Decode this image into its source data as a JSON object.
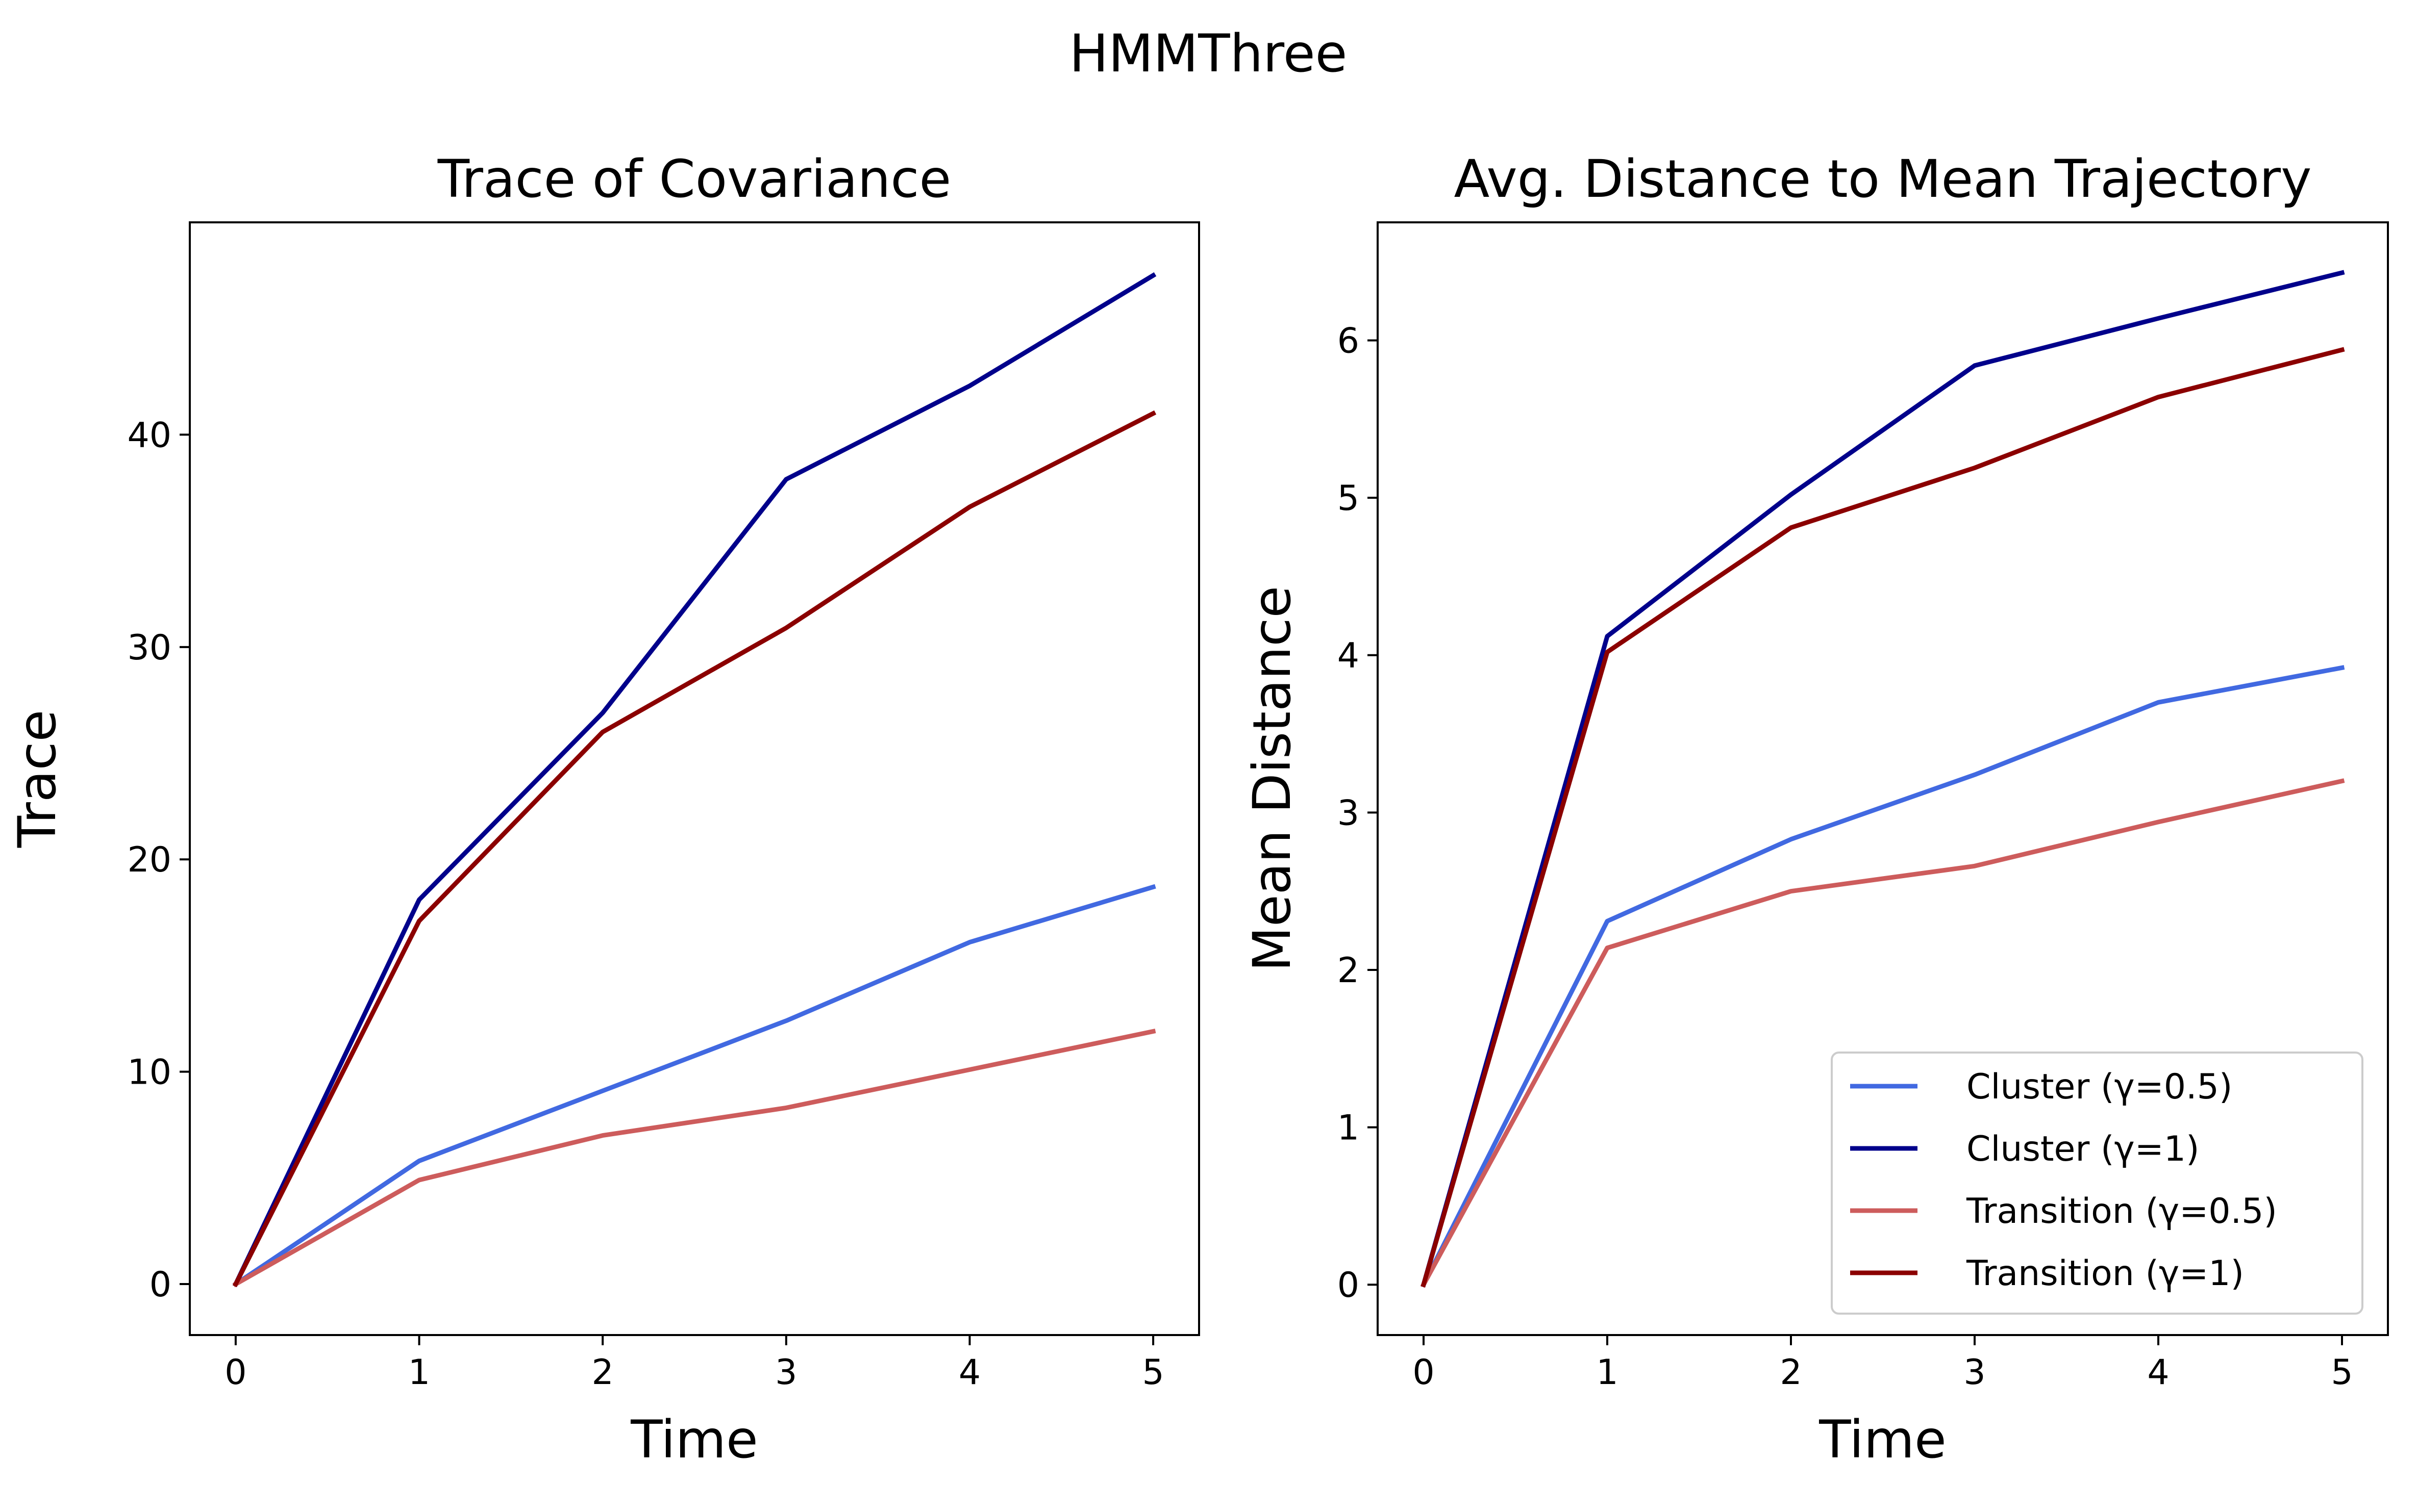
{
  "suptitle": "HMMThree",
  "colors": {
    "cluster_0_5": "#4169e1",
    "cluster_1": "#00008b",
    "transition_0_5": "#cd5c5c",
    "transition_1": "#8b0000"
  },
  "chart_data": [
    {
      "type": "line",
      "title": "Trace of Covariance",
      "xlabel": "Time",
      "ylabel": "Trace",
      "x": [
        0,
        1,
        2,
        3,
        4,
        5
      ],
      "xlim": [
        -0.25,
        5.25
      ],
      "ylim": [
        -2.4,
        50.0
      ],
      "xticks": [
        0,
        1,
        2,
        3,
        4,
        5
      ],
      "yticks": [
        0,
        10,
        20,
        30,
        40
      ],
      "grid": false,
      "legend": null,
      "series": [
        {
          "name": "Cluster (γ=0.5)",
          "color": "#4169e1",
          "values": [
            0,
            5.8,
            9.1,
            12.4,
            16.1,
            18.7
          ]
        },
        {
          "name": "Cluster (γ=1)",
          "color": "#00008b",
          "values": [
            0,
            18.1,
            26.9,
            37.9,
            42.3,
            47.5
          ]
        },
        {
          "name": "Transition (γ=0.5)",
          "color": "#cd5c5c",
          "values": [
            0,
            4.9,
            7.0,
            8.3,
            10.1,
            11.9
          ]
        },
        {
          "name": "Transition (γ=1)",
          "color": "#8b0000",
          "values": [
            0,
            17.1,
            26.0,
            30.9,
            36.6,
            41.0
          ]
        }
      ]
    },
    {
      "type": "line",
      "title": "Avg. Distance to Mean Trajectory",
      "xlabel": "Time",
      "ylabel": "Mean Distance",
      "x": [
        0,
        1,
        2,
        3,
        4,
        5
      ],
      "xlim": [
        -0.25,
        5.25
      ],
      "ylim": [
        -0.32,
        6.75
      ],
      "xticks": [
        0,
        1,
        2,
        3,
        4,
        5
      ],
      "yticks": [
        0,
        1,
        2,
        3,
        4,
        5,
        6
      ],
      "grid": false,
      "legend": "lower-right",
      "series": [
        {
          "name": "Cluster (γ=0.5)",
          "color": "#4169e1",
          "values": [
            0,
            2.31,
            2.83,
            3.24,
            3.7,
            3.92
          ]
        },
        {
          "name": "Cluster (γ=1)",
          "color": "#00008b",
          "values": [
            0,
            4.12,
            5.02,
            5.84,
            6.14,
            6.43
          ]
        },
        {
          "name": "Transition (γ=0.5)",
          "color": "#cd5c5c",
          "values": [
            0,
            2.14,
            2.5,
            2.66,
            2.94,
            3.2
          ]
        },
        {
          "name": "Transition (γ=1)",
          "color": "#8b0000",
          "values": [
            0,
            4.02,
            4.81,
            5.19,
            5.64,
            5.94
          ]
        }
      ]
    }
  ]
}
